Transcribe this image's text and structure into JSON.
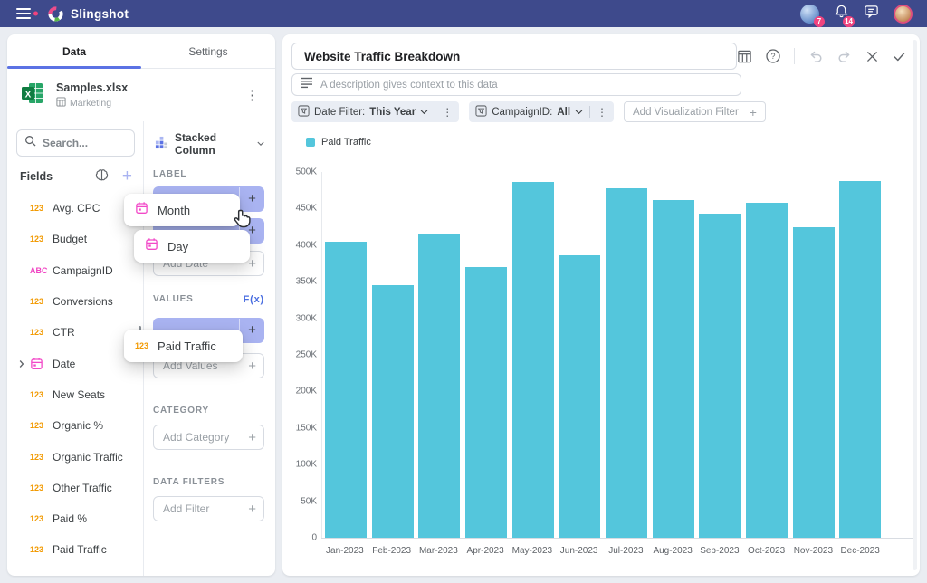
{
  "navbar": {
    "app_name": "Slingshot",
    "collab_badge": "7",
    "notification_badge": "14"
  },
  "left_panel": {
    "tabs": [
      {
        "label": "Data",
        "active": true
      },
      {
        "label": "Settings",
        "active": false
      }
    ],
    "file": {
      "name": "Samples.xlsx",
      "sheet": "Marketing"
    },
    "search_placeholder": "Search...",
    "fields_header": "Fields",
    "fields": [
      {
        "type": "123",
        "name": "Avg. CPC"
      },
      {
        "type": "123",
        "name": "Budget"
      },
      {
        "type": "ABC",
        "name": "CampaignID"
      },
      {
        "type": "123",
        "name": "Conversions"
      },
      {
        "type": "123",
        "name": "CTR"
      },
      {
        "type": "date",
        "name": "Date",
        "expandable": true
      },
      {
        "type": "123",
        "name": "New Seats"
      },
      {
        "type": "123",
        "name": "Organic %"
      },
      {
        "type": "123",
        "name": "Organic Traffic"
      },
      {
        "type": "123",
        "name": "Other Traffic"
      },
      {
        "type": "123",
        "name": "Paid %"
      },
      {
        "type": "123",
        "name": "Paid Traffic"
      }
    ]
  },
  "editor": {
    "chart_type": "Stacked Column",
    "label_header": "LABEL",
    "add_date_placeholder": "Add Date",
    "values_header": "VALUES",
    "fx_label": "F(x)",
    "add_values_placeholder": "Add Values",
    "category_header": "CATEGORY",
    "add_category_placeholder": "Add Category",
    "data_filters_header": "DATA FILTERS",
    "add_filter_placeholder": "Add Filter",
    "drag_items": {
      "month": "Month",
      "day": "Day",
      "paid_badge": "123",
      "paid": "Paid Traffic"
    }
  },
  "main": {
    "title": "Website Traffic Breakdown",
    "description_placeholder": "A description gives context to this data",
    "filters": [
      {
        "name": "Date Filter:",
        "value": "This Year"
      },
      {
        "name": "CampaignID:",
        "value": "All"
      }
    ],
    "add_visualization_filter": "Add Visualization Filter"
  },
  "chart_data": {
    "type": "bar",
    "title": "",
    "legend": [
      "Paid Traffic"
    ],
    "legend_position": "top-left",
    "grid": false,
    "categories": [
      "Jan-2023",
      "Feb-2023",
      "Mar-2023",
      "Apr-2023",
      "May-2023",
      "Jun-2023",
      "Jul-2023",
      "Aug-2023",
      "Sep-2023",
      "Oct-2023",
      "Nov-2023",
      "Dec-2023"
    ],
    "series": [
      {
        "name": "Paid Traffic",
        "values": [
          405000,
          345000,
          415000,
          370000,
          487000,
          386000,
          478000,
          462000,
          443000,
          458000,
          425000,
          488000
        ]
      }
    ],
    "xlabel": "",
    "ylabel": "",
    "ylim": [
      0,
      500000
    ],
    "yticks": [
      "500K",
      "450K",
      "400K",
      "350K",
      "300K",
      "250K",
      "200K",
      "150K",
      "100K",
      "50K",
      "0"
    ],
    "color": "#54c6dc"
  },
  "colors": {
    "navbar": "#3e4a8c",
    "accent_blue": "#5b72e4",
    "chip_purple": "#a9b3f1",
    "badge_pink": "#f0437e",
    "field_string_pink": "#f043c2",
    "field_number_orange": "#f29a02",
    "bar_teal": "#54c6dc"
  }
}
